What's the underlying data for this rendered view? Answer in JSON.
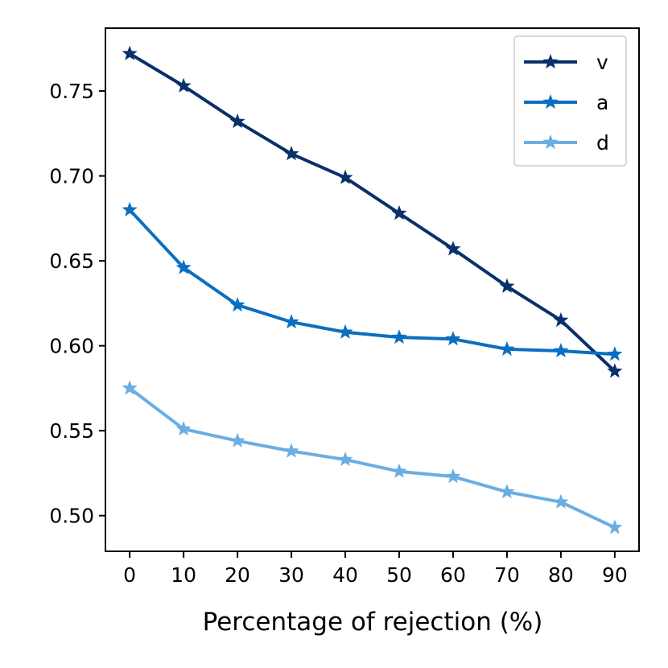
{
  "chart_data": {
    "type": "line",
    "title": "",
    "xlabel": "Percentage of rejection (%)",
    "ylabel": "",
    "x": [
      0,
      10,
      20,
      30,
      40,
      50,
      60,
      70,
      80,
      90
    ],
    "xlim": [
      -4.5,
      94.5
    ],
    "ylim": [
      0.479,
      0.787
    ],
    "xticks": [
      0,
      10,
      20,
      30,
      40,
      50,
      60,
      70,
      80,
      90
    ],
    "yticks": [
      0.5,
      0.55,
      0.6,
      0.65,
      0.7,
      0.75
    ],
    "xtick_labels": [
      "0",
      "10",
      "20",
      "30",
      "40",
      "50",
      "60",
      "70",
      "80",
      "90"
    ],
    "ytick_labels": [
      "0.50",
      "0.55",
      "0.60",
      "0.65",
      "0.70",
      "0.75"
    ],
    "grid": false,
    "legend_position": "top-right",
    "marker": "star",
    "series": [
      {
        "name": "v",
        "color": "#08306b",
        "values": [
          0.772,
          0.753,
          0.732,
          0.713,
          0.699,
          0.678,
          0.657,
          0.635,
          0.615,
          0.585
        ]
      },
      {
        "name": "a",
        "color": "#0a6fc2",
        "values": [
          0.68,
          0.646,
          0.624,
          0.614,
          0.608,
          0.605,
          0.604,
          0.598,
          0.597,
          0.595
        ]
      },
      {
        "name": "d",
        "color": "#6aaee3",
        "values": [
          0.575,
          0.551,
          0.544,
          0.538,
          0.533,
          0.526,
          0.523,
          0.514,
          0.508,
          0.493
        ]
      }
    ]
  }
}
